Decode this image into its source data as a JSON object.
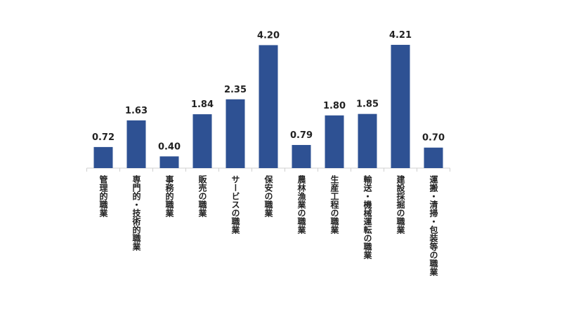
{
  "chart_data": {
    "type": "bar",
    "categories": [
      "管理的職業",
      "専門的・技術的職業",
      "事務的職業",
      "販売の職業",
      "サービスの職業",
      "保安の職業",
      "農林漁業の職業",
      "生産工程の職業",
      "輸送・機械運転の職業",
      "建設採掘の職業",
      "運搬・清掃・包装等の職業"
    ],
    "values": [
      0.72,
      1.63,
      0.4,
      1.84,
      2.35,
      4.2,
      0.79,
      1.8,
      1.85,
      4.21,
      0.7
    ],
    "value_labels": [
      "0.72",
      "1.63",
      "0.40",
      "1.84",
      "2.35",
      "4.20",
      "0.79",
      "1.80",
      "1.85",
      "4.21",
      "0.70"
    ],
    "color": "#2e5193"
  }
}
